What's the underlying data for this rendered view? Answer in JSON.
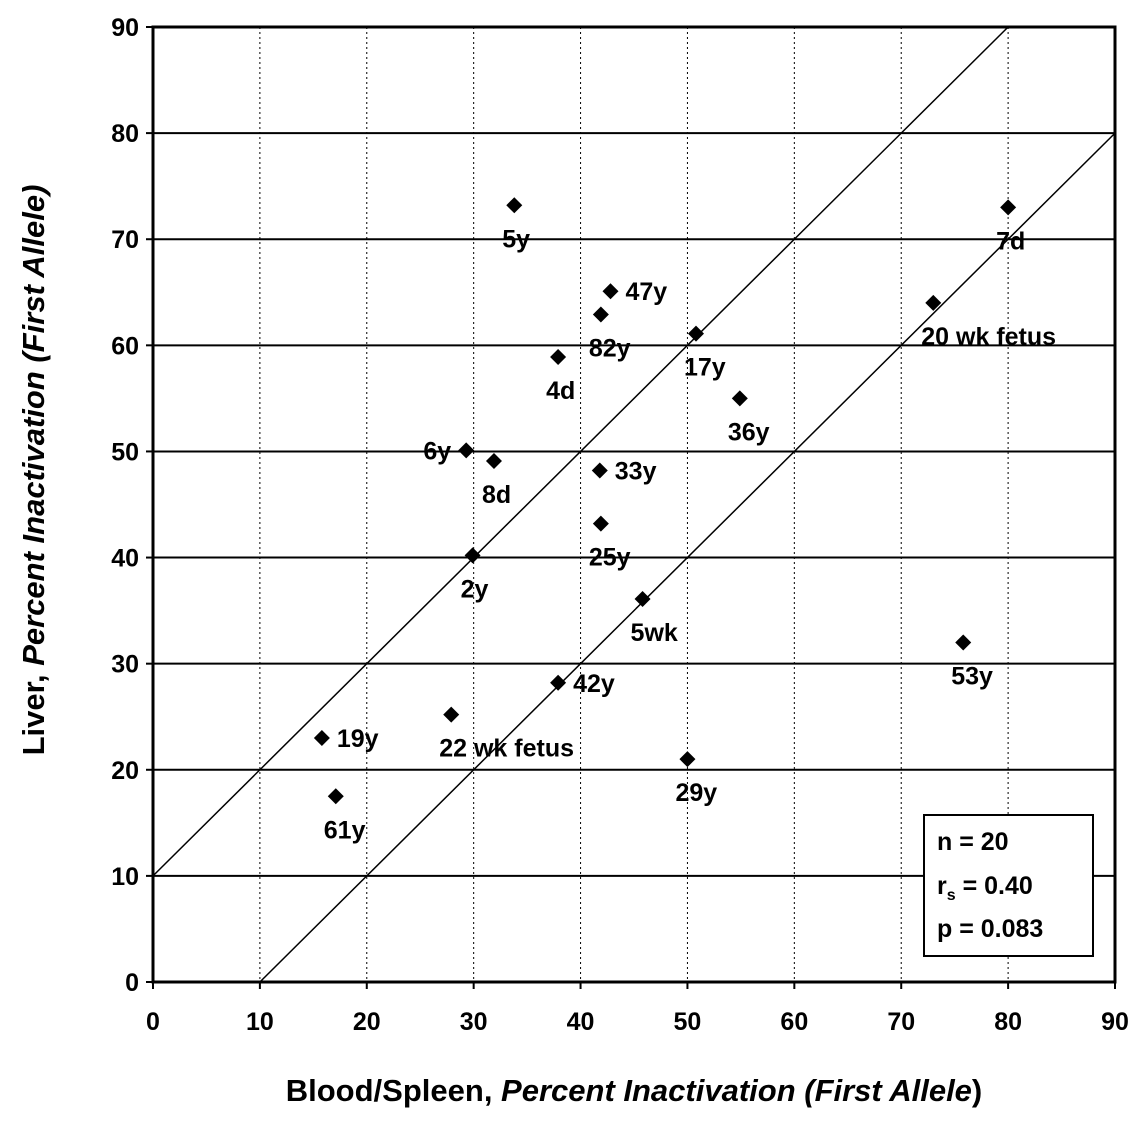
{
  "chart_data": {
    "type": "scatter",
    "title": "",
    "xlabel": {
      "parts": [
        {
          "text": "Blood/Spleen, ",
          "italic": false
        },
        {
          "text": "Percent Inactivation (First Allele",
          "italic": true
        },
        {
          "text": ")",
          "italic": false
        }
      ]
    },
    "ylabel": {
      "parts": [
        {
          "text": "Liver, ",
          "italic": false
        },
        {
          "text": "Percent Inactivation (First  Allele)",
          "italic": true
        }
      ]
    },
    "xlim": [
      0,
      90
    ],
    "ylim": [
      0,
      90
    ],
    "x_ticks": [
      "0",
      "10",
      "20",
      "30",
      "40",
      "50",
      "60",
      "70",
      "80",
      "90"
    ],
    "y_ticks": [
      "0",
      "10",
      "20",
      "30",
      "40",
      "50",
      "60",
      "70",
      "80",
      "90"
    ],
    "grid": {
      "x": "dotted",
      "y": "solid"
    },
    "marker": "diamond",
    "marker_color": "#000000",
    "reference_lines": [
      {
        "intercept": 10,
        "slope": 1
      },
      {
        "intercept": -10,
        "slope": 1
      }
    ],
    "points": [
      {
        "label": "5y",
        "x": 33.8,
        "y": 73.2,
        "label_pos": "below"
      },
      {
        "label": "7d",
        "x": 80.0,
        "y": 73.0,
        "label_pos": "below"
      },
      {
        "label": "47y",
        "x": 42.8,
        "y": 65.1,
        "label_pos": "right"
      },
      {
        "label": "20 wk fetus",
        "x": 73.0,
        "y": 64.0,
        "label_pos": "below"
      },
      {
        "label": "82y",
        "x": 41.9,
        "y": 62.9,
        "label_pos": "below"
      },
      {
        "label": "17y",
        "x": 50.8,
        "y": 61.1,
        "label_pos": "below"
      },
      {
        "label": "4d",
        "x": 37.9,
        "y": 58.9,
        "label_pos": "below"
      },
      {
        "label": "36y",
        "x": 54.9,
        "y": 55.0,
        "label_pos": "below"
      },
      {
        "label": "6y",
        "x": 29.3,
        "y": 50.1,
        "label_pos": "left"
      },
      {
        "label": "8d",
        "x": 31.9,
        "y": 49.1,
        "label_pos": "below"
      },
      {
        "label": "33y",
        "x": 41.8,
        "y": 48.2,
        "label_pos": "right"
      },
      {
        "label": "25y",
        "x": 41.9,
        "y": 43.2,
        "label_pos": "below"
      },
      {
        "label": "2y",
        "x": 29.9,
        "y": 40.2,
        "label_pos": "below"
      },
      {
        "label": "5wk",
        "x": 45.8,
        "y": 36.1,
        "label_pos": "below"
      },
      {
        "label": "53y",
        "x": 75.8,
        "y": 32.0,
        "label_pos": "below"
      },
      {
        "label": "42y",
        "x": 37.9,
        "y": 28.2,
        "label_pos": "right"
      },
      {
        "label": "22 wk fetus",
        "x": 27.9,
        "y": 25.2,
        "label_pos": "below"
      },
      {
        "label": "19y",
        "x": 15.8,
        "y": 23.0,
        "label_pos": "right"
      },
      {
        "label": "29y",
        "x": 50.0,
        "y": 21.0,
        "label_pos": "below"
      },
      {
        "label": "61y",
        "x": 17.1,
        "y": 17.5,
        "label_pos": "below"
      }
    ],
    "stats_box": {
      "n_line": "n = 20",
      "r_main": "r",
      "r_sub": "s",
      "r_rest": " = 0.40",
      "p_line": "p  = 0.083"
    }
  }
}
